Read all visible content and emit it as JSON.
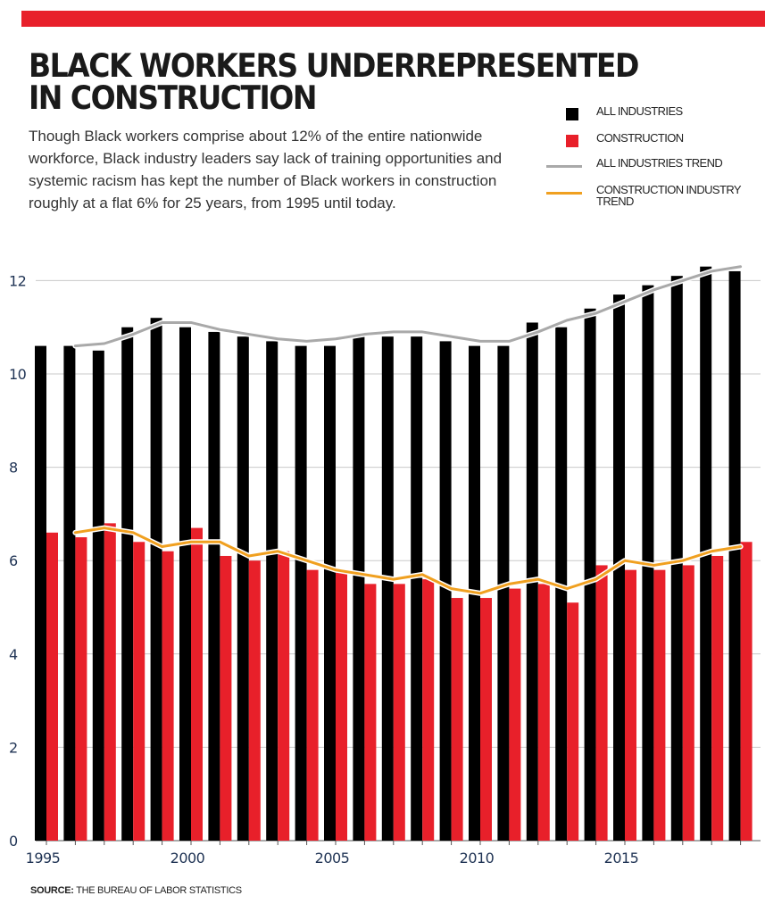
{
  "header": {
    "title": "BLACK WORKERS UNDERREPRESENTED IN CONSTRUCTION",
    "subtitle": "Though Black workers comprise about 12% of the entire nationwide workforce, Black industry leaders say lack of training opportunities and systemic racism has kept the number of Black workers in construction roughly at a flat 6% for 25 years, from 1995 until today.",
    "source_label": "SOURCE:",
    "source_text": "THE BUREAU OF LABOR STATISTICS"
  },
  "colors": {
    "accent_bar": "#e8202a",
    "all_industries": "#000000",
    "construction": "#e8202a",
    "all_trend": "#a9a9a9",
    "construction_trend": "#f0a020"
  },
  "chart_data": {
    "type": "bar",
    "x": [
      1995,
      1996,
      1997,
      1998,
      1999,
      2000,
      2001,
      2002,
      2003,
      2004,
      2005,
      2006,
      2007,
      2008,
      2009,
      2010,
      2011,
      2012,
      2013,
      2014,
      2015,
      2016,
      2017,
      2018,
      2019
    ],
    "series": [
      {
        "name": "ALL INDUSTRIES",
        "values": [
          10.6,
          10.6,
          10.5,
          11.0,
          11.2,
          11.0,
          10.9,
          10.8,
          10.7,
          10.6,
          10.6,
          10.8,
          10.8,
          10.8,
          10.7,
          10.6,
          10.6,
          11.1,
          11.0,
          11.4,
          11.7,
          11.9,
          12.1,
          12.3,
          12.2
        ]
      },
      {
        "name": "CONSTRUCTION",
        "values": [
          6.6,
          6.5,
          6.8,
          6.4,
          6.2,
          6.7,
          6.1,
          6.0,
          6.2,
          5.8,
          5.8,
          5.5,
          5.5,
          5.6,
          5.2,
          5.2,
          5.4,
          5.5,
          5.1,
          5.9,
          5.8,
          5.8,
          5.9,
          6.1,
          6.4
        ]
      },
      {
        "name": "ALL INDUSTRIES TREND",
        "type": "line",
        "x": [
          1996,
          1997,
          1998,
          1999,
          2000,
          2001,
          2002,
          2003,
          2004,
          2005,
          2006,
          2007,
          2008,
          2009,
          2010,
          2011,
          2012,
          2013,
          2014,
          2015,
          2016,
          2017,
          2018,
          2019
        ],
        "values": [
          10.6,
          10.65,
          10.85,
          11.1,
          11.1,
          10.95,
          10.85,
          10.75,
          10.7,
          10.75,
          10.85,
          10.9,
          10.9,
          10.8,
          10.7,
          10.7,
          10.9,
          11.15,
          11.3,
          11.55,
          11.8,
          12.0,
          12.2,
          12.3
        ]
      },
      {
        "name": "CONSTRUCTION INDUSTRY TREND",
        "type": "line",
        "x": [
          1996,
          1997,
          1998,
          1999,
          2000,
          2001,
          2002,
          2003,
          2004,
          2005,
          2006,
          2007,
          2008,
          2009,
          2010,
          2011,
          2012,
          2013,
          2014,
          2015,
          2016,
          2017,
          2018,
          2019
        ],
        "values": [
          6.6,
          6.7,
          6.6,
          6.3,
          6.4,
          6.4,
          6.1,
          6.2,
          6.0,
          5.8,
          5.7,
          5.6,
          5.7,
          5.4,
          5.3,
          5.5,
          5.6,
          5.4,
          5.6,
          6.0,
          5.9,
          6.0,
          6.2,
          6.3
        ]
      }
    ],
    "yticks": [
      0,
      2,
      4,
      6,
      8,
      10,
      12
    ],
    "xticks": [
      1995,
      2000,
      2005,
      2010,
      2015
    ],
    "ylim": [
      0,
      12.4
    ],
    "grid": true,
    "legend_position": "top-right"
  }
}
